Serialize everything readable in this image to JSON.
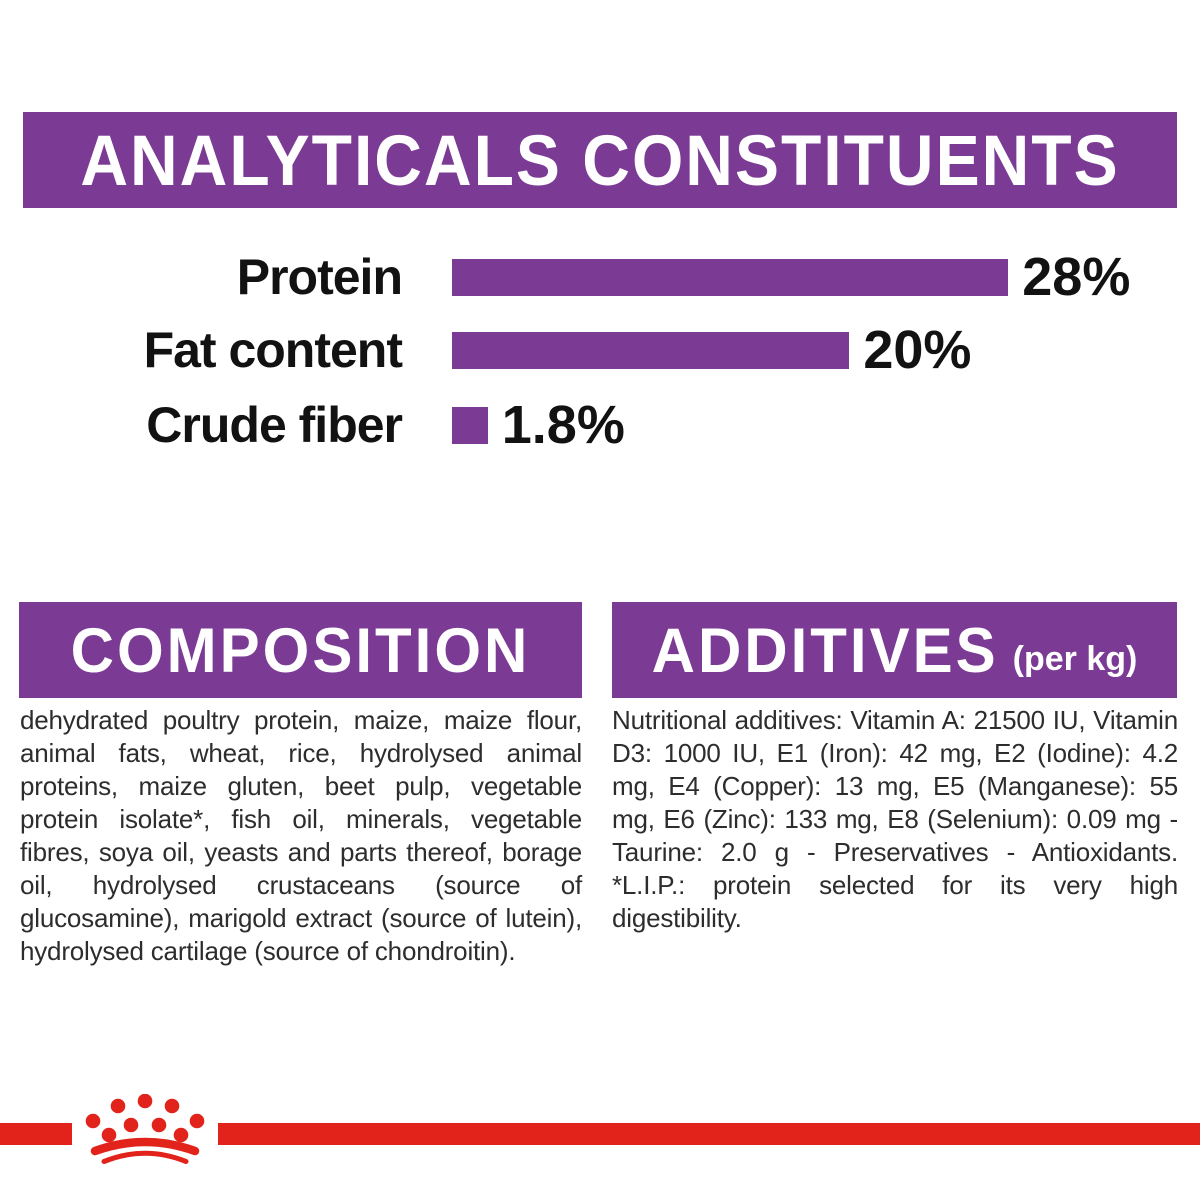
{
  "brand_colors": {
    "purple": "#7B3B94",
    "red": "#E2231B",
    "body_text": "#2D2D2D",
    "header_text": "#FFFFFF"
  },
  "analytics_header": {
    "title": "ANALYTICALS CONSTITUENTS"
  },
  "chart_data": {
    "type": "bar",
    "orientation": "horizontal",
    "title": "ANALYTICALS CONSTITUENTS",
    "categories": [
      "Protein",
      "Fat content",
      "Crude fiber"
    ],
    "values": [
      28,
      20,
      1.8
    ],
    "value_labels": [
      "28%",
      "20%",
      "1.8%"
    ],
    "unit": "%",
    "xlim": [
      0,
      30
    ],
    "bar_color": "#7B3B94",
    "grid": false,
    "legend": false
  },
  "composition": {
    "title": "COMPOSITION",
    "body": "dehydrated poultry protein, maize, maize flour, animal fats, wheat, rice, hydrolysed animal proteins, maize gluten, beet pulp, vegetable protein isolate*, fish oil, minerals, vegetable fibres, soya oil, yeasts and parts thereof, borage oil, hydrolysed crustaceans (source of glucosamine), marigold extract (source of lutein), hydrolysed cartilage (source of chondroitin)."
  },
  "additives": {
    "title": "ADDITIVES",
    "subtitle": "(per kg)",
    "body": "Nutritional additives: Vitamin A: 21500 IU, Vitamin D3: 1000 IU, E1 (Iron): 42 mg, E2 (Iodine): 4.2 mg, E4 (Copper): 13 mg, E5 (Manganese): 55 mg, E6 (Zinc): 133 mg, E8 (Selenium): 0.09 mg - Taurine: 2.0 g - Preservatives - Antioxidants. *L.I.P.: protein selected for its very high digestibility.",
    "body_lead": "Nutritional additives:"
  },
  "footer": {
    "logo": "royal-canin-crown"
  }
}
